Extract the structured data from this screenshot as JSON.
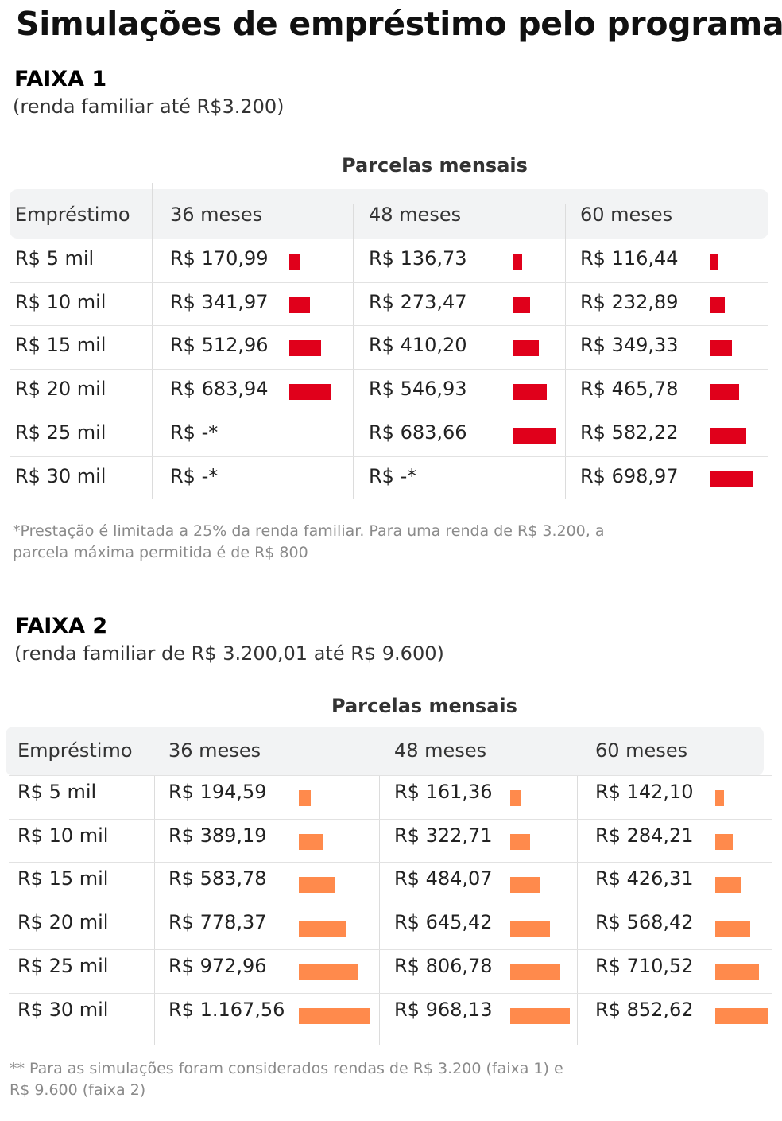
{
  "title": "Simulações de empréstimo pelo programa",
  "colors": {
    "faixa1_bar": "#e0001b",
    "faixa2_bar": "#ff8a4c",
    "header_bg": "#f2f3f4"
  },
  "faixa1": {
    "title": "FAIXA 1",
    "subtitle": "(renda familiar até R$3.200)",
    "parcelas_label": "Parcelas mensais",
    "headers": [
      "Empréstimo",
      "36 meses",
      "48 meses",
      "60 meses"
    ],
    "rows": [
      {
        "loan": "R$ 5 mil",
        "cells": [
          {
            "text": "R$ 170,99",
            "value": 170.99
          },
          {
            "text": "R$ 136,73",
            "value": 136.73
          },
          {
            "text": "R$ 116,44",
            "value": 116.44
          }
        ]
      },
      {
        "loan": "R$ 10 mil",
        "cells": [
          {
            "text": "R$ 341,97",
            "value": 341.97
          },
          {
            "text": "R$ 273,47",
            "value": 273.47
          },
          {
            "text": "R$ 232,89",
            "value": 232.89
          }
        ]
      },
      {
        "loan": "R$ 15 mil",
        "cells": [
          {
            "text": "R$ 512,96",
            "value": 512.96
          },
          {
            "text": "R$ 410,20",
            "value": 410.2
          },
          {
            "text": "R$ 349,33",
            "value": 349.33
          }
        ]
      },
      {
        "loan": "R$ 20 mil",
        "cells": [
          {
            "text": "R$ 683,94",
            "value": 683.94
          },
          {
            "text": "R$ 546,93",
            "value": 546.93
          },
          {
            "text": "R$ 465,78",
            "value": 465.78
          }
        ]
      },
      {
        "loan": "R$ 25 mil",
        "cells": [
          {
            "text": "R$ -*",
            "value": null
          },
          {
            "text": "R$ 683,66",
            "value": 683.66
          },
          {
            "text": "R$ 582,22",
            "value": 582.22
          }
        ]
      },
      {
        "loan": "R$ 30 mil",
        "cells": [
          {
            "text": "R$ -*",
            "value": null
          },
          {
            "text": "R$ -*",
            "value": null
          },
          {
            "text": "R$ 698,97",
            "value": 698.97
          }
        ]
      }
    ],
    "note": "*Prestação é limitada a 25% da renda familiar. Para uma renda de R$ 3.200, a parcela máxima permitida é de R$ 800"
  },
  "faixa2": {
    "title": "FAIXA 2",
    "subtitle": "(renda familiar de R$ 3.200,01 até R$ 9.600)",
    "parcelas_label": "Parcelas mensais",
    "headers": [
      "Empréstimo",
      "36 meses",
      "48 meses",
      "60 meses"
    ],
    "rows": [
      {
        "loan": "R$ 5 mil",
        "cells": [
          {
            "text": "R$ 194,59",
            "value": 194.59
          },
          {
            "text": "R$ 161,36",
            "value": 161.36
          },
          {
            "text": "R$ 142,10",
            "value": 142.1
          }
        ]
      },
      {
        "loan": "R$ 10 mil",
        "cells": [
          {
            "text": "R$ 389,19",
            "value": 389.19
          },
          {
            "text": "R$ 322,71",
            "value": 322.71
          },
          {
            "text": "R$ 284,21",
            "value": 284.21
          }
        ]
      },
      {
        "loan": "R$ 15 mil",
        "cells": [
          {
            "text": "R$ 583,78",
            "value": 583.78
          },
          {
            "text": "R$ 484,07",
            "value": 484.07
          },
          {
            "text": "R$ 426,31",
            "value": 426.31
          }
        ]
      },
      {
        "loan": "R$ 20 mil",
        "cells": [
          {
            "text": "R$ 778,37",
            "value": 778.37
          },
          {
            "text": "R$ 645,42",
            "value": 645.42
          },
          {
            "text": "R$ 568,42",
            "value": 568.42
          }
        ]
      },
      {
        "loan": "R$ 25 mil",
        "cells": [
          {
            "text": "R$ 972,96",
            "value": 972.96
          },
          {
            "text": "R$ 806,78",
            "value": 806.78
          },
          {
            "text": "R$ 710,52",
            "value": 710.52
          }
        ]
      },
      {
        "loan": "R$ 30 mil",
        "cells": [
          {
            "text": "R$ 1.167,56",
            "value": 1167.56
          },
          {
            "text": "R$ 968,13",
            "value": 968.13
          },
          {
            "text": "R$ 852,62",
            "value": 852.62
          }
        ]
      }
    ],
    "note": "** Para as simulações foram considerados rendas de R$ 3.200 (faixa 1) e R$ 9.600 (faixa 2)"
  }
}
